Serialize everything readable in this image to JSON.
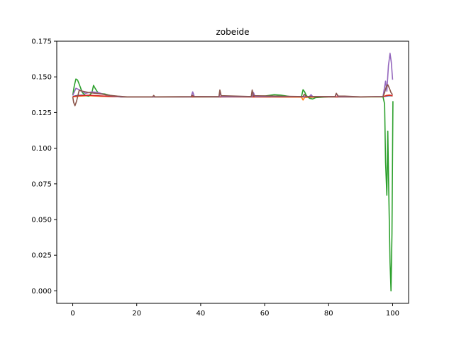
{
  "chart_data": {
    "type": "line",
    "title": "zobeide",
    "xlabel": "",
    "ylabel": "",
    "xlim": [
      -5,
      105
    ],
    "ylim": [
      -0.00875,
      0.175
    ],
    "xticks": [
      0,
      20,
      40,
      60,
      80,
      100
    ],
    "yticks": [
      0.0,
      0.025,
      0.05,
      0.075,
      0.1,
      0.125,
      0.15,
      0.175
    ],
    "ytick_labels": [
      "0.000",
      "0.025",
      "0.050",
      "0.075",
      "0.100",
      "0.125",
      "0.150",
      "0.175"
    ],
    "grid": false,
    "series": [
      {
        "color": "#1f77b4",
        "points": [
          [
            0,
            0.1362
          ],
          [
            1,
            0.1368
          ],
          [
            3,
            0.1372
          ],
          [
            6,
            0.1368
          ],
          [
            10,
            0.1363
          ],
          [
            15,
            0.136
          ],
          [
            30,
            0.136
          ],
          [
            45,
            0.136
          ],
          [
            60,
            0.136
          ],
          [
            75,
            0.136
          ],
          [
            90,
            0.136
          ],
          [
            97,
            0.1361
          ],
          [
            98,
            0.1365
          ],
          [
            99,
            0.1368
          ],
          [
            100,
            0.1366
          ]
        ]
      },
      {
        "color": "#ff7f0e",
        "points": [
          [
            0,
            0.136
          ],
          [
            2,
            0.1365
          ],
          [
            5,
            0.1368
          ],
          [
            9,
            0.1364
          ],
          [
            15,
            0.136
          ],
          [
            30,
            0.136
          ],
          [
            50,
            0.136
          ],
          [
            65,
            0.1358
          ],
          [
            71.5,
            0.1358
          ],
          [
            72,
            0.1338
          ],
          [
            72.5,
            0.1356
          ],
          [
            80,
            0.136
          ],
          [
            90,
            0.136
          ],
          [
            97,
            0.136
          ],
          [
            98,
            0.137
          ],
          [
            99,
            0.1372
          ],
          [
            100,
            0.1366
          ]
        ]
      },
      {
        "color": "#2ca02c",
        "points": [
          [
            0,
            0.137
          ],
          [
            0.5,
            0.144
          ],
          [
            1,
            0.1485
          ],
          [
            1.5,
            0.1478
          ],
          [
            2,
            0.145
          ],
          [
            3,
            0.139
          ],
          [
            4,
            0.137
          ],
          [
            5,
            0.1365
          ],
          [
            6,
            0.139
          ],
          [
            6.5,
            0.144
          ],
          [
            7,
            0.142
          ],
          [
            8,
            0.1385
          ],
          [
            10,
            0.138
          ],
          [
            12,
            0.1368
          ],
          [
            15,
            0.136
          ],
          [
            30,
            0.136
          ],
          [
            45,
            0.136
          ],
          [
            55,
            0.1362
          ],
          [
            60,
            0.1366
          ],
          [
            63,
            0.1375
          ],
          [
            65,
            0.1372
          ],
          [
            68,
            0.1362
          ],
          [
            71.5,
            0.136
          ],
          [
            72,
            0.141
          ],
          [
            72.5,
            0.1395
          ],
          [
            73,
            0.137
          ],
          [
            74,
            0.135
          ],
          [
            75,
            0.1345
          ],
          [
            76,
            0.1355
          ],
          [
            80,
            0.136
          ],
          [
            90,
            0.136
          ],
          [
            97,
            0.136
          ],
          [
            97.5,
            0.131
          ],
          [
            97.8,
            0.09
          ],
          [
            98.2,
            0.067
          ],
          [
            98.5,
            0.112
          ],
          [
            98.8,
            0.07
          ],
          [
            99.2,
            0.02
          ],
          [
            99.5,
            0.0
          ],
          [
            99.8,
            0.04
          ],
          [
            100.1,
            0.133
          ]
        ]
      },
      {
        "color": "#d62728",
        "points": [
          [
            0,
            0.1362
          ],
          [
            2,
            0.1368
          ],
          [
            5,
            0.1371
          ],
          [
            10,
            0.1365
          ],
          [
            15,
            0.136
          ],
          [
            30,
            0.136
          ],
          [
            45,
            0.136
          ],
          [
            60,
            0.136
          ],
          [
            75,
            0.136
          ],
          [
            90,
            0.136
          ],
          [
            97,
            0.1361
          ],
          [
            98,
            0.1368
          ],
          [
            99,
            0.1372
          ],
          [
            100,
            0.1368
          ]
        ]
      },
      {
        "color": "#9467bd",
        "points": [
          [
            0,
            0.137
          ],
          [
            1,
            0.142
          ],
          [
            2,
            0.141
          ],
          [
            4,
            0.1385
          ],
          [
            6,
            0.1395
          ],
          [
            8,
            0.139
          ],
          [
            10,
            0.1375
          ],
          [
            13,
            0.1365
          ],
          [
            15,
            0.136
          ],
          [
            37,
            0.136
          ],
          [
            37.5,
            0.1395
          ],
          [
            38,
            0.1362
          ],
          [
            45.8,
            0.136
          ],
          [
            46,
            0.139
          ],
          [
            46.5,
            0.1362
          ],
          [
            56,
            0.136
          ],
          [
            56.5,
            0.139
          ],
          [
            57,
            0.1362
          ],
          [
            74,
            0.1362
          ],
          [
            74.5,
            0.1375
          ],
          [
            75,
            0.1362
          ],
          [
            82,
            0.1362
          ],
          [
            82.5,
            0.138
          ],
          [
            83,
            0.1362
          ],
          [
            90,
            0.136
          ],
          [
            97,
            0.1362
          ],
          [
            97.8,
            0.147
          ],
          [
            98.2,
            0.14
          ],
          [
            98.7,
            0.158
          ],
          [
            99.2,
            0.1665
          ],
          [
            99.6,
            0.16
          ],
          [
            100,
            0.148
          ]
        ]
      },
      {
        "color": "#8c564b",
        "points": [
          [
            0,
            0.136
          ],
          [
            0.3,
            0.132
          ],
          [
            0.7,
            0.1298
          ],
          [
            1.2,
            0.133
          ],
          [
            2,
            0.1405
          ],
          [
            3,
            0.14
          ],
          [
            5,
            0.139
          ],
          [
            7,
            0.1385
          ],
          [
            9,
            0.138
          ],
          [
            11,
            0.1372
          ],
          [
            14,
            0.1365
          ],
          [
            17,
            0.136
          ],
          [
            25,
            0.136
          ],
          [
            25.3,
            0.137
          ],
          [
            25.7,
            0.136
          ],
          [
            37,
            0.1362
          ],
          [
            37.4,
            0.1372
          ],
          [
            37.8,
            0.1362
          ],
          [
            45.7,
            0.1362
          ],
          [
            46,
            0.1408
          ],
          [
            46.4,
            0.1368
          ],
          [
            55.8,
            0.1362
          ],
          [
            56.1,
            0.1408
          ],
          [
            56.5,
            0.1368
          ],
          [
            72,
            0.1362
          ],
          [
            72.4,
            0.1378
          ],
          [
            73,
            0.1362
          ],
          [
            82,
            0.1362
          ],
          [
            82.4,
            0.1385
          ],
          [
            83,
            0.1365
          ],
          [
            85,
            0.1365
          ],
          [
            90,
            0.136
          ],
          [
            97,
            0.1362
          ],
          [
            97.5,
            0.139
          ],
          [
            98,
            0.143
          ],
          [
            98.5,
            0.1445
          ],
          [
            99,
            0.142
          ],
          [
            99.5,
            0.139
          ],
          [
            100,
            0.1375
          ]
        ]
      }
    ]
  }
}
